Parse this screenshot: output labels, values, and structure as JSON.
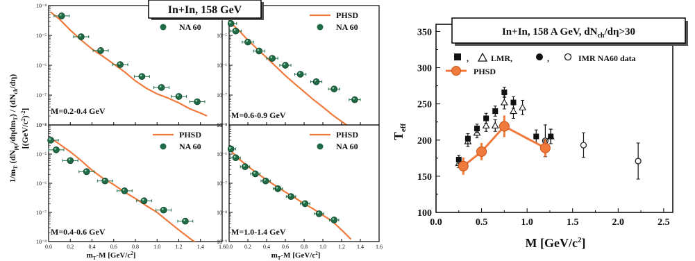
{
  "colors": {
    "phsd_curve": "#f07a3c",
    "na60_marker": "#1e6b45",
    "axis": "#000000"
  },
  "left_figure": {
    "title": "In+In,  158 GeV",
    "ylabel_main": "1/m",
    "ylabel_sub1": "T",
    "ylabel_mid1": " (dN",
    "ylabel_sub2": "μμ",
    "ylabel_mid2": "/dηdm",
    "ylabel_sub3": "T",
    "ylabel_mid3": ") / (dN",
    "ylabel_sub4": "ch",
    "ylabel_mid4": "/dη)",
    "ylabel_units": "[(GeV/c",
    "ylabel_units_sup": "2",
    "ylabel_units_end": ")",
    "ylabel_units_sup2": "-2",
    "ylabel_units_close": "]",
    "xlabel_main": "m",
    "xlabel_sub": "T",
    "xlabel_rest": "-M  [GeV/c",
    "xlabel_sup": "2",
    "xlabel_close": "]"
  },
  "chart_data": [
    {
      "type": "scatter",
      "panel": "M=0.2-0.4 GeV",
      "legend": [
        "PHSD",
        "NA 60"
      ],
      "ylog": true,
      "xlim": [
        0.0,
        1.6
      ],
      "ylim_exp": [
        -8,
        -4
      ],
      "yticks": [
        "10⁻⁸",
        "10⁻⁷",
        "10⁻⁶",
        "10⁻⁵",
        "10⁻⁴"
      ],
      "series": [
        {
          "name": "NA 60",
          "x": [
            0.12,
            0.3,
            0.48,
            0.66,
            0.86,
            1.04,
            1.2,
            1.37
          ],
          "y": [
            4.5e-05,
            9e-06,
            3.1e-06,
            1.05e-06,
            4.2e-07,
            1.8e-07,
            9e-08,
            6e-08
          ],
          "xerr": 0.07
        },
        {
          "name": "PHSD",
          "x": [
            0.02,
            0.1,
            0.2,
            0.3,
            0.4,
            0.5,
            0.6,
            0.7,
            0.8,
            0.9,
            1.0,
            1.1,
            1.2,
            1.3,
            1.4,
            1.46
          ],
          "y": [
            6e-05,
            3.5e-05,
            1.5e-05,
            7e-06,
            3.5e-06,
            2e-06,
            1.1e-06,
            6e-07,
            3e-07,
            1.7e-07,
            1.1e-07,
            8e-08,
            5.5e-08,
            3.5e-08,
            2.5e-08,
            2e-08
          ]
        }
      ]
    },
    {
      "type": "scatter",
      "panel": "M=0.6-0.9 GeV",
      "legend": [
        "PHSD",
        "NA 60"
      ],
      "ylog": true,
      "xlim": [
        0.0,
        1.6
      ],
      "ylim_exp": [
        -8,
        -4
      ],
      "yticks": [
        "10⁻⁸",
        "10⁻⁷",
        "10⁻⁶",
        "10⁻⁵",
        "10⁻⁴"
      ],
      "series": [
        {
          "name": "NA 60",
          "x": [
            0.02,
            0.07,
            0.2,
            0.32,
            0.46,
            0.6,
            0.76,
            0.93,
            1.12,
            1.34
          ],
          "y": [
            2.5e-05,
            1.4e-05,
            6e-06,
            3e-06,
            1.7e-06,
            1e-06,
            5e-07,
            2.8e-07,
            1.6e-07,
            7e-08
          ],
          "xerr": 0.06
        },
        {
          "name": "PHSD",
          "x": [
            0.02,
            0.1,
            0.2,
            0.3,
            0.4,
            0.5,
            0.6,
            0.7,
            0.8,
            0.9,
            1.0,
            1.1,
            1.2,
            1.3,
            1.38
          ],
          "y": [
            2.6e-05,
            1.5e-05,
            7e-06,
            3.5e-06,
            1.8e-06,
            9e-07,
            4.5e-07,
            2.4e-07,
            1.3e-07,
            7e-08,
            4e-08,
            2.2e-08,
            1.3e-08,
            8e-09,
            6e-09
          ]
        }
      ]
    },
    {
      "type": "scatter",
      "panel": "M=0.4-0.6 GeV",
      "legend": [
        "PHSD",
        "NA 60"
      ],
      "ylog": true,
      "xlim": [
        0.0,
        1.6
      ],
      "ylim_exp": [
        -8,
        -4
      ],
      "yticks": [
        "10⁻⁸",
        "10⁻⁷",
        "10⁻⁶",
        "10⁻⁵",
        "10⁻⁴"
      ],
      "series": [
        {
          "name": "NA 60",
          "x": [
            0.02,
            0.07,
            0.2,
            0.35,
            0.52,
            0.7,
            0.88,
            1.06,
            1.26
          ],
          "y": [
            3e-05,
            1.4e-05,
            6e-06,
            2.5e-06,
            1.2e-06,
            5.5e-07,
            2.5e-07,
            1.2e-07,
            5e-08
          ],
          "xerr": 0.07
        },
        {
          "name": "PHSD",
          "x": [
            0.02,
            0.1,
            0.2,
            0.3,
            0.4,
            0.5,
            0.6,
            0.7,
            0.8,
            0.9,
            1.0,
            1.1,
            1.2,
            1.3,
            1.38
          ],
          "y": [
            3.5e-05,
            2.2e-05,
            1.2e-05,
            6e-06,
            2.8e-06,
            1.5e-06,
            9e-07,
            5e-07,
            3e-07,
            1.7e-07,
            1e-07,
            5e-08,
            2.5e-08,
            1.3e-08,
            8e-09
          ]
        }
      ]
    },
    {
      "type": "scatter",
      "panel": "M=1.0-1.4 GeV",
      "legend": [
        "PHSD",
        "NA 60"
      ],
      "ylog": true,
      "xlim": [
        0.0,
        1.6
      ],
      "ylim_exp": [
        -9,
        -5
      ],
      "yticks": [
        "10⁻⁹",
        "10⁻⁸",
        "10⁻⁷",
        "10⁻⁶",
        "10⁻⁵"
      ],
      "series": [
        {
          "name": "NA 60",
          "x": [
            0.02,
            0.07,
            0.17,
            0.28,
            0.39,
            0.52,
            0.66,
            0.81,
            0.96,
            1.12
          ],
          "y": [
            1.5e-06,
            7.5e-07,
            3.7e-07,
            2.1e-07,
            1.2e-07,
            6.5e-08,
            3.5e-08,
            2e-08,
            9e-09,
            5.5e-09
          ],
          "xerr": 0.05
        },
        {
          "name": "PHSD",
          "x": [
            0.02,
            0.1,
            0.2,
            0.3,
            0.4,
            0.5,
            0.6,
            0.7,
            0.8,
            0.9,
            1.0,
            1.1,
            1.2,
            1.3
          ],
          "y": [
            1.3e-06,
            7e-07,
            3.8e-07,
            2.2e-07,
            1.3e-07,
            8e-08,
            5e-08,
            3.2e-08,
            2e-08,
            1.3e-08,
            8e-09,
            5e-09,
            2.5e-09,
            1.2e-09
          ]
        }
      ]
    },
    {
      "type": "scatter",
      "title": "In+In, 158 A GeV, dN",
      "title_sub": "ch",
      "title_rest": "/dη>30",
      "xlabel_main": "M  [GeV/c",
      "xlabel_sup": "2",
      "xlabel_close": "]",
      "ylabel_main": "T",
      "ylabel_sub": "eff",
      "legend": {
        "row1_sep1": ",",
        "row1_lmr": "LMR,",
        "row1_sep2": ",",
        "row1_imr": "IMR  NA60 data",
        "row2": "PHSD"
      },
      "xlim": [
        0.0,
        2.6
      ],
      "ylim": [
        100,
        360
      ],
      "xticks": [
        "0.0",
        "0.5",
        "1.0",
        "1.5",
        "2.0",
        "2.5"
      ],
      "yticks": [
        "100",
        "150",
        "200",
        "250",
        "300",
        "350"
      ],
      "series": [
        {
          "name": "LMR filled",
          "x": [
            0.25,
            0.35,
            0.45,
            0.55,
            0.65,
            0.75,
            0.85,
            1.1,
            1.26
          ],
          "y": [
            173,
            202,
            216,
            230,
            240,
            266,
            252,
            205,
            205
          ],
          "yerr": [
            6,
            7,
            6,
            7,
            7,
            7,
            8,
            9,
            10
          ]
        },
        {
          "name": "LMR open",
          "x": [
            0.25,
            0.35,
            0.45,
            0.55,
            0.65,
            0.75,
            0.85,
            0.95,
            1.26
          ],
          "y": [
            168,
            198,
            210,
            220,
            220,
            252,
            240,
            245,
            205
          ],
          "yerr": [
            6,
            7,
            7,
            8,
            8,
            9,
            10,
            10,
            10
          ]
        },
        {
          "name": "IMR filled",
          "x": [
            1.2
          ],
          "y": [
            199
          ],
          "yerr": [
            22
          ]
        },
        {
          "name": "IMR open",
          "x": [
            1.2,
            1.62,
            2.22
          ],
          "y": [
            199,
            193,
            171
          ],
          "yerr": [
            22,
            17,
            25
          ]
        },
        {
          "name": "PHSD",
          "x": [
            0.3,
            0.5,
            0.75,
            1.2
          ],
          "y": [
            164,
            184,
            219,
            189
          ],
          "yerr": [
            12,
            12,
            15,
            12
          ]
        }
      ]
    }
  ]
}
